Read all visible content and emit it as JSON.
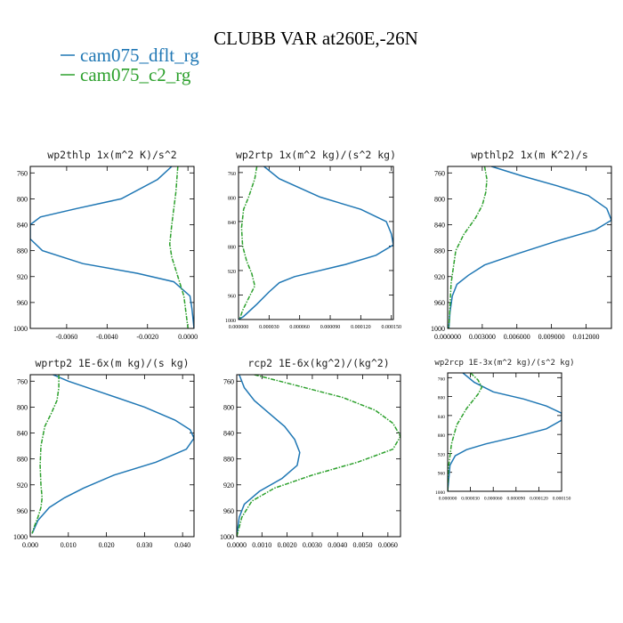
{
  "title": "CLUBB VAR at260E,-26N",
  "legend": [
    {
      "label": "cam075_dflt_rg",
      "color": "#1f77b4"
    },
    {
      "label": "cam075_c2_rg",
      "color": "#2ca02c"
    }
  ],
  "chart_data": [
    {
      "type": "line",
      "title": "wp2thlp  1x(m^2 K)/s^2",
      "xlim": [
        -0.0078,
        0.0003
      ],
      "ylim": [
        1000,
        750
      ],
      "xticks": [
        -0.006,
        -0.004,
        -0.002,
        0.0
      ],
      "xtick_labels": [
        "-0.0060",
        "-0.0040",
        "-0.0020",
        "0.0000"
      ],
      "yticks": [
        760,
        800,
        840,
        880,
        920,
        960,
        1000
      ],
      "series": [
        {
          "name": "cam075_dflt_rg",
          "x": [
            -0.0008,
            -0.0015,
            -0.0033,
            -0.0055,
            -0.0073,
            -0.0078,
            -0.0078,
            -0.0072,
            -0.0052,
            -0.0025,
            -0.0007,
            0.0001,
            0.0002,
            0.0003
          ],
          "y": [
            750,
            770,
            800,
            815,
            828,
            840,
            862,
            880,
            900,
            915,
            928,
            950,
            970,
            1000
          ]
        },
        {
          "name": "cam075_c2_rg",
          "x": [
            -0.0005,
            -0.0006,
            -0.0008,
            -0.0009,
            -0.0008,
            -0.0006,
            -0.0004,
            -0.0002,
            -0.0001,
            0.0
          ],
          "y": [
            750,
            790,
            840,
            870,
            890,
            910,
            930,
            950,
            975,
            1000
          ]
        }
      ]
    },
    {
      "type": "line",
      "title": "wp2rtp  1x(m^2 kg)/(s^2 kg)",
      "xlim": [
        0.0,
        0.000152
      ],
      "ylim": [
        1000,
        750
      ],
      "xticks": [
        0.0,
        3e-05,
        6e-05,
        9e-05,
        0.00012,
        0.00015
      ],
      "xtick_labels": [
        "0.000000",
        "0.000030",
        "0.000060",
        "0.000090",
        "0.000120",
        "0.000150"
      ],
      "yticks": [
        760,
        800,
        840,
        880,
        920,
        960,
        1000
      ],
      "series": [
        {
          "name": "cam075_dflt_rg",
          "x": [
            2.5e-05,
            4e-05,
            8e-05,
            0.00012,
            0.000145,
            0.00015,
            0.000152,
            0.000135,
            0.000105,
            7.5e-05,
            5.5e-05,
            4e-05,
            3e-05,
            1.8e-05,
            5e-06,
            0.0
          ],
          "y": [
            750,
            770,
            800,
            820,
            840,
            860,
            878,
            895,
            910,
            922,
            930,
            940,
            955,
            975,
            995,
            1000
          ]
        },
        {
          "name": "cam075_c2_rg",
          "x": [
            1.8e-05,
            1.6e-05,
            1e-05,
            5e-06,
            3e-06,
            4e-06,
            8e-06,
            1.3e-05,
            1.6e-05,
            1e-05,
            4e-06,
            1e-06
          ],
          "y": [
            750,
            770,
            800,
            820,
            850,
            880,
            905,
            925,
            945,
            965,
            985,
            1000
          ]
        }
      ]
    },
    {
      "type": "line",
      "title": "wpthlp2  1x(m K^2)/s",
      "xlim": [
        0.0,
        0.0142
      ],
      "ylim": [
        1000,
        750
      ],
      "xticks": [
        0.0,
        0.003,
        0.006,
        0.009,
        0.012
      ],
      "xtick_labels": [
        "0.000000",
        "0.003000",
        "0.006000",
        "0.009000",
        "0.012000"
      ],
      "yticks": [
        760,
        800,
        840,
        880,
        920,
        960,
        1000
      ],
      "series": [
        {
          "name": "cam075_dflt_rg",
          "x": [
            0.0038,
            0.0065,
            0.0095,
            0.0122,
            0.0138,
            0.0142,
            0.0128,
            0.0095,
            0.006,
            0.0032,
            0.0018,
            0.0008,
            0.0004,
            0.0002,
            0.0001
          ],
          "y": [
            750,
            765,
            780,
            795,
            815,
            833,
            848,
            865,
            885,
            902,
            918,
            932,
            950,
            975,
            1000
          ]
        },
        {
          "name": "cam075_c2_rg",
          "x": [
            0.0032,
            0.0034,
            0.0033,
            0.003,
            0.0024,
            0.0014,
            0.0007,
            0.0003,
            0.0001
          ],
          "y": [
            750,
            770,
            790,
            810,
            830,
            855,
            880,
            930,
            1000
          ]
        }
      ]
    },
    {
      "type": "line",
      "title": "wprtp2  1E-6x(m kg)/(s kg)",
      "xlim": [
        0.0,
        0.043
      ],
      "ylim": [
        1000,
        750
      ],
      "xticks": [
        0.0,
        0.01,
        0.02,
        0.03,
        0.04
      ],
      "xtick_labels": [
        "0.000",
        "0.010",
        "0.020",
        "0.030",
        "0.040"
      ],
      "yticks": [
        760,
        800,
        840,
        880,
        920,
        960,
        1000
      ],
      "series": [
        {
          "name": "cam075_dflt_rg",
          "x": [
            0.006,
            0.01,
            0.02,
            0.03,
            0.038,
            0.042,
            0.043,
            0.041,
            0.033,
            0.022,
            0.014,
            0.009,
            0.005,
            0.002,
            0.0005
          ],
          "y": [
            750,
            760,
            780,
            800,
            820,
            835,
            848,
            865,
            885,
            905,
            925,
            940,
            955,
            975,
            995
          ]
        },
        {
          "name": "cam075_c2_rg",
          "x": [
            0.0075,
            0.0075,
            0.007,
            0.0055,
            0.0038,
            0.0028,
            0.0026,
            0.0028,
            0.0031,
            0.0028,
            0.002,
            0.001,
            0.0005
          ],
          "y": [
            750,
            770,
            790,
            810,
            830,
            860,
            890,
            920,
            940,
            955,
            970,
            985,
            995
          ]
        }
      ]
    },
    {
      "type": "line",
      "title": "rcp2  1E-6x(kg^2)/(kg^2)",
      "xlim": [
        0.0,
        0.0065
      ],
      "ylim": [
        1000,
        750
      ],
      "xticks": [
        0.0,
        0.001,
        0.002,
        0.003,
        0.004,
        0.005,
        0.006
      ],
      "xtick_labels": [
        "0.0000",
        "0.0010",
        "0.0020",
        "0.0030",
        "0.0040",
        "0.0050",
        "0.0060"
      ],
      "yticks": [
        760,
        800,
        840,
        880,
        920,
        960,
        1000
      ],
      "series": [
        {
          "name": "cam075_dflt_rg",
          "x": [
            0.0001,
            0.0003,
            0.0007,
            0.0013,
            0.0019,
            0.0023,
            0.0025,
            0.0024,
            0.0018,
            0.0009,
            0.0003,
            0.0001,
            0.0
          ],
          "y": [
            750,
            770,
            790,
            810,
            830,
            850,
            870,
            890,
            910,
            930,
            950,
            970,
            1000
          ]
        },
        {
          "name": "cam075_c2_rg",
          "x": [
            0.0007,
            0.0022,
            0.0042,
            0.0055,
            0.0062,
            0.0065,
            0.0062,
            0.0048,
            0.003,
            0.0015,
            0.0006,
            0.0002,
            0.0
          ],
          "y": [
            750,
            765,
            785,
            805,
            825,
            845,
            865,
            885,
            905,
            925,
            945,
            970,
            1000
          ]
        }
      ]
    },
    {
      "type": "line",
      "title": "wp2rcp  1E-3x(m^2 kg)/(s^2 kg)",
      "xlim": [
        0.0,
        0.00015
      ],
      "ylim": [
        1000,
        750
      ],
      "xticks": [
        0.0,
        3e-05,
        6e-05,
        9e-05,
        0.00012,
        0.00015
      ],
      "xtick_labels": [
        "0.000000",
        "0.000030",
        "0.000060",
        "0.000090",
        "0.000120",
        "0.000150"
      ],
      "yticks": [
        760,
        800,
        840,
        880,
        920,
        960,
        1000
      ],
      "series": [
        {
          "name": "cam075_dflt_rg",
          "x": [
            2e-05,
            3.5e-05,
            6e-05,
            0.0001,
            0.00013,
            0.00015,
            0.00015,
            0.00013,
            9e-05,
            5e-05,
            2.5e-05,
            1e-05,
            3e-06,
            0.0
          ],
          "y": [
            750,
            770,
            790,
            805,
            820,
            835,
            850,
            868,
            885,
            900,
            912,
            925,
            945,
            1000
          ]
        },
        {
          "name": "cam075_c2_rg",
          "x": [
            3e-05,
            4e-05,
            4.5e-05,
            4e-05,
            2.5e-05,
            1.2e-05,
            5e-06,
            1e-06,
            0.0
          ],
          "y": [
            750,
            765,
            780,
            795,
            825,
            860,
            900,
            950,
            1000
          ]
        }
      ]
    }
  ]
}
